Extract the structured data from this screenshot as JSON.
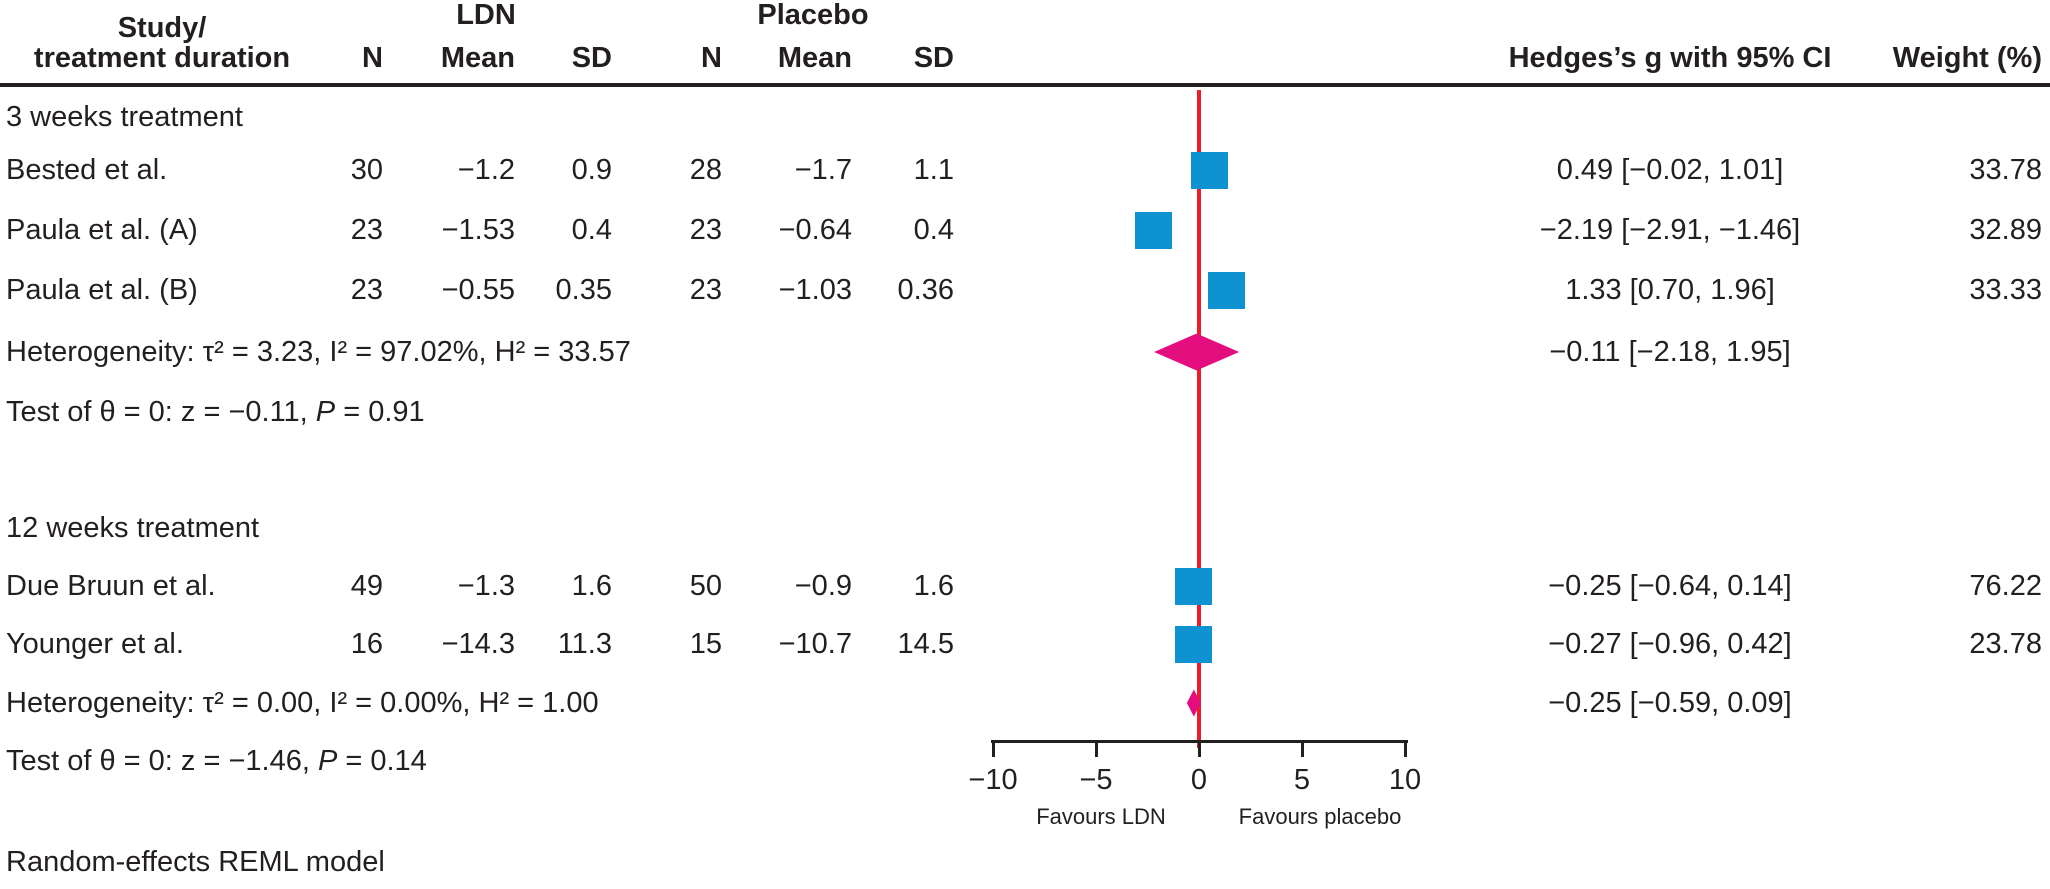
{
  "header": {
    "study_col_line1": "Study/",
    "study_col_line2": "treatment duration",
    "group1_label": "LDN",
    "group2_label": "Placebo",
    "n1": "N",
    "mean1": "Mean",
    "sd1": "SD",
    "n2": "N",
    "mean2": "Mean",
    "sd2": "SD",
    "effect_col": "Hedges’s g with 95% CI",
    "weight_col": "Weight (%)"
  },
  "colors": {
    "marker_blue": "#0e92d2",
    "diamond_magenta": "#e40d7e",
    "zero_line_red": "#ed1c2b",
    "text": "#231f20"
  },
  "footer": {
    "model_note": "Random-effects REML model"
  },
  "chart_data": {
    "type": "forest",
    "effect_measure": "Hedges's g with 95% CI",
    "axis": {
      "xlim": [
        -10,
        10
      ],
      "ticks": [
        -10,
        -5,
        0,
        5,
        10
      ],
      "tick_labels": [
        "−10",
        "−5",
        "0",
        "5",
        "10"
      ],
      "zero_line": 0,
      "left_label": "Favours LDN",
      "right_label": "Favours placebo"
    },
    "groups": [
      {
        "label": "3 weeks treatment",
        "studies": [
          {
            "label": "Bested et al.",
            "n1": "30",
            "mean1": "−1.2",
            "sd1": "0.9",
            "n2": "28",
            "mean2": "−1.7",
            "sd2": "1.1",
            "g": 0.49,
            "ci_lo": -0.02,
            "ci_hi": 1.01,
            "es_text": "0.49 [−0.02, 1.01]",
            "weight": "33.78"
          },
          {
            "label": "Paula et al. (A)",
            "n1": "23",
            "mean1": "−1.53",
            "sd1": "0.4",
            "n2": "23",
            "mean2": "−0.64",
            "sd2": "0.4",
            "g": -2.19,
            "ci_lo": -2.91,
            "ci_hi": -1.46,
            "es_text": "−2.19 [−2.91, −1.46]",
            "weight": "32.89"
          },
          {
            "label": "Paula et al. (B)",
            "n1": "23",
            "mean1": "−0.55",
            "sd1": "0.35",
            "n2": "23",
            "mean2": "−1.03",
            "sd2": "0.36",
            "g": 1.33,
            "ci_lo": 0.7,
            "ci_hi": 1.96,
            "es_text": "1.33 [0.70, 1.96]",
            "weight": "33.33"
          }
        ],
        "heterogeneity": "Heterogeneity: τ² = 3.23, I² = 97.02%, H² = 33.57",
        "overall": {
          "est": -0.11,
          "lo": -2.18,
          "hi": 1.95,
          "es_text": "−0.11 [−2.18, 1.95]"
        },
        "test": {
          "prefix": "Test of θ = 0: z = −0.11, ",
          "p_label": "P",
          "suffix": " = 0.91"
        }
      },
      {
        "label": "12 weeks treatment",
        "studies": [
          {
            "label": "Due Bruun et al.",
            "n1": "49",
            "mean1": "−1.3",
            "sd1": "1.6",
            "n2": "50",
            "mean2": "−0.9",
            "sd2": "1.6",
            "g": -0.25,
            "ci_lo": -0.64,
            "ci_hi": 0.14,
            "es_text": "−0.25 [−0.64, 0.14]",
            "weight": "76.22"
          },
          {
            "label": "Younger et al.",
            "n1": "16",
            "mean1": "−14.3",
            "sd1": "11.3",
            "n2": "15",
            "mean2": "−10.7",
            "sd2": "14.5",
            "g": -0.27,
            "ci_lo": -0.96,
            "ci_hi": 0.42,
            "es_text": "−0.27 [−0.96, 0.42]",
            "weight": "23.78"
          }
        ],
        "heterogeneity": "Heterogeneity: τ² = 0.00, I² = 0.00%, H² = 1.00",
        "overall": {
          "est": -0.25,
          "lo": -0.59,
          "hi": 0.09,
          "es_text": "−0.25 [−0.59, 0.09]"
        },
        "test": {
          "prefix": "Test of θ = 0: z = −1.46, ",
          "p_label": "P",
          "suffix": " = 0.14"
        }
      }
    ]
  }
}
